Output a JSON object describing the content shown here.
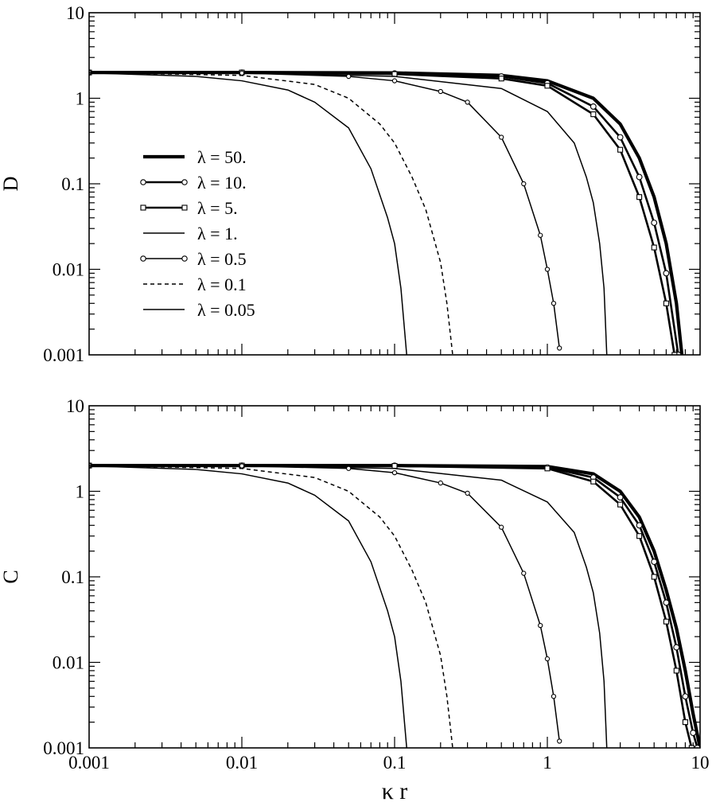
{
  "chart_data": [
    {
      "type": "line",
      "panel": "top",
      "ylabel": "D",
      "xlabel": "",
      "xscale": "log",
      "yscale": "log",
      "xlim": [
        0.001,
        10
      ],
      "ylim": [
        0.001,
        10
      ],
      "xticks": [
        "",
        "",
        "",
        "",
        ""
      ],
      "yticks": [
        "10",
        "1",
        "0.1",
        "0.01",
        "0.001"
      ],
      "legend": "center-left",
      "series": [
        {
          "name": "λ = 50.",
          "style": "thick",
          "values": [
            [
              0.001,
              2.0
            ],
            [
              0.01,
              2.0
            ],
            [
              0.1,
              1.98
            ],
            [
              0.5,
              1.85
            ],
            [
              1,
              1.6
            ],
            [
              2,
              1.0
            ],
            [
              3,
              0.5
            ],
            [
              4,
              0.2
            ],
            [
              5,
              0.07
            ],
            [
              6,
              0.02
            ],
            [
              7,
              0.004
            ],
            [
              7.6,
              0.001
            ]
          ]
        },
        {
          "name": "λ = 10.",
          "style": "thick-circle",
          "values": [
            [
              0.001,
              2.0
            ],
            [
              0.01,
              2.0
            ],
            [
              0.1,
              1.95
            ],
            [
              0.5,
              1.8
            ],
            [
              1,
              1.5
            ],
            [
              2,
              0.8
            ],
            [
              3,
              0.35
            ],
            [
              4,
              0.12
            ],
            [
              5,
              0.035
            ],
            [
              6,
              0.009
            ],
            [
              7.2,
              0.001
            ]
          ]
        },
        {
          "name": "λ = 5.",
          "style": "thick-square",
          "values": [
            [
              0.001,
              2.0
            ],
            [
              0.01,
              2.0
            ],
            [
              0.1,
              1.92
            ],
            [
              0.5,
              1.7
            ],
            [
              1,
              1.4
            ],
            [
              2,
              0.65
            ],
            [
              3,
              0.25
            ],
            [
              4,
              0.07
            ],
            [
              5,
              0.018
            ],
            [
              6,
              0.004
            ],
            [
              6.8,
              0.001
            ]
          ]
        },
        {
          "name": "λ = 1.",
          "style": "thin",
          "values": [
            [
              0.001,
              2.0
            ],
            [
              0.01,
              1.99
            ],
            [
              0.1,
              1.8
            ],
            [
              0.5,
              1.3
            ],
            [
              1,
              0.7
            ],
            [
              1.5,
              0.3
            ],
            [
              1.8,
              0.12
            ],
            [
              2,
              0.06
            ],
            [
              2.2,
              0.02
            ],
            [
              2.35,
              0.006
            ],
            [
              2.45,
              0.001
            ]
          ]
        },
        {
          "name": "λ = 0.5",
          "style": "thin-circle",
          "values": [
            [
              0.001,
              2.0
            ],
            [
              0.01,
              1.97
            ],
            [
              0.05,
              1.8
            ],
            [
              0.1,
              1.6
            ],
            [
              0.2,
              1.2
            ],
            [
              0.3,
              0.9
            ],
            [
              0.5,
              0.35
            ],
            [
              0.7,
              0.1
            ],
            [
              0.9,
              0.025
            ],
            [
              1.0,
              0.01
            ],
            [
              1.1,
              0.004
            ],
            [
              1.2,
              0.0012
            ]
          ]
        },
        {
          "name": "λ = 0.1",
          "style": "dashed",
          "values": [
            [
              0.001,
              2.0
            ],
            [
              0.01,
              1.85
            ],
            [
              0.03,
              1.45
            ],
            [
              0.05,
              1.0
            ],
            [
              0.08,
              0.5
            ],
            [
              0.1,
              0.3
            ],
            [
              0.13,
              0.12
            ],
            [
              0.16,
              0.05
            ],
            [
              0.2,
              0.012
            ],
            [
              0.22,
              0.004
            ],
            [
              0.24,
              0.001
            ]
          ]
        },
        {
          "name": "λ = 0.05",
          "style": "thin",
          "values": [
            [
              0.001,
              1.98
            ],
            [
              0.005,
              1.8
            ],
            [
              0.01,
              1.6
            ],
            [
              0.02,
              1.25
            ],
            [
              0.03,
              0.9
            ],
            [
              0.05,
              0.45
            ],
            [
              0.07,
              0.15
            ],
            [
              0.09,
              0.04
            ],
            [
              0.1,
              0.02
            ],
            [
              0.11,
              0.006
            ],
            [
              0.12,
              0.001
            ]
          ]
        }
      ]
    },
    {
      "type": "line",
      "panel": "bottom",
      "ylabel": "C",
      "xlabel": "κ r",
      "xscale": "log",
      "yscale": "log",
      "xlim": [
        0.001,
        10
      ],
      "ylim": [
        0.001,
        10
      ],
      "xticks": [
        "0.001",
        "0.01",
        "0.1",
        "1",
        "10"
      ],
      "yticks": [
        "10",
        "1",
        "0.1",
        "0.01",
        "0.001"
      ],
      "series": [
        {
          "name": "λ = 50.",
          "style": "thick",
          "values": [
            [
              0.001,
              2.0
            ],
            [
              0.01,
              2.0
            ],
            [
              0.1,
              2.0
            ],
            [
              1,
              1.95
            ],
            [
              2,
              1.6
            ],
            [
              3,
              1.0
            ],
            [
              4,
              0.5
            ],
            [
              5,
              0.2
            ],
            [
              6,
              0.07
            ],
            [
              7,
              0.025
            ],
            [
              8,
              0.008
            ],
            [
              9,
              0.0025
            ],
            [
              10,
              0.001
            ]
          ]
        },
        {
          "name": "λ = 10.",
          "style": "thick-circle",
          "values": [
            [
              0.001,
              2.0
            ],
            [
              0.01,
              2.0
            ],
            [
              0.1,
              1.99
            ],
            [
              1,
              1.9
            ],
            [
              2,
              1.45
            ],
            [
              3,
              0.85
            ],
            [
              4,
              0.4
            ],
            [
              5,
              0.15
            ],
            [
              6,
              0.05
            ],
            [
              7,
              0.015
            ],
            [
              8,
              0.004
            ],
            [
              9,
              0.0015
            ],
            [
              9.6,
              0.001
            ]
          ]
        },
        {
          "name": "λ = 5.",
          "style": "thick-square",
          "values": [
            [
              0.001,
              2.0
            ],
            [
              0.01,
              2.0
            ],
            [
              0.1,
              1.98
            ],
            [
              1,
              1.85
            ],
            [
              2,
              1.3
            ],
            [
              3,
              0.7
            ],
            [
              4,
              0.3
            ],
            [
              5,
              0.1
            ],
            [
              6,
              0.03
            ],
            [
              7,
              0.008
            ],
            [
              8,
              0.002
            ],
            [
              8.8,
              0.001
            ]
          ]
        },
        {
          "name": "λ = 1.",
          "style": "thin",
          "values": [
            [
              0.001,
              2.0
            ],
            [
              0.01,
              1.99
            ],
            [
              0.1,
              1.85
            ],
            [
              0.5,
              1.35
            ],
            [
              1,
              0.75
            ],
            [
              1.5,
              0.33
            ],
            [
              1.8,
              0.13
            ],
            [
              2,
              0.065
            ],
            [
              2.2,
              0.022
            ],
            [
              2.35,
              0.006
            ],
            [
              2.45,
              0.001
            ]
          ]
        },
        {
          "name": "λ = 0.5",
          "style": "thin-circle",
          "values": [
            [
              0.001,
              2.0
            ],
            [
              0.01,
              1.98
            ],
            [
              0.05,
              1.85
            ],
            [
              0.1,
              1.65
            ],
            [
              0.2,
              1.25
            ],
            [
              0.3,
              0.95
            ],
            [
              0.5,
              0.38
            ],
            [
              0.7,
              0.11
            ],
            [
              0.9,
              0.027
            ],
            [
              1.0,
              0.011
            ],
            [
              1.1,
              0.004
            ],
            [
              1.2,
              0.0012
            ]
          ]
        },
        {
          "name": "λ = 0.1",
          "style": "dashed",
          "values": [
            [
              0.001,
              2.0
            ],
            [
              0.01,
              1.85
            ],
            [
              0.03,
              1.45
            ],
            [
              0.05,
              1.0
            ],
            [
              0.08,
              0.5
            ],
            [
              0.1,
              0.3
            ],
            [
              0.13,
              0.12
            ],
            [
              0.16,
              0.05
            ],
            [
              0.2,
              0.012
            ],
            [
              0.22,
              0.004
            ],
            [
              0.24,
              0.001
            ]
          ]
        },
        {
          "name": "λ = 0.05",
          "style": "thin",
          "values": [
            [
              0.001,
              1.98
            ],
            [
              0.005,
              1.8
            ],
            [
              0.01,
              1.6
            ],
            [
              0.02,
              1.25
            ],
            [
              0.03,
              0.9
            ],
            [
              0.05,
              0.45
            ],
            [
              0.07,
              0.15
            ],
            [
              0.09,
              0.04
            ],
            [
              0.1,
              0.02
            ],
            [
              0.11,
              0.006
            ],
            [
              0.12,
              0.001
            ]
          ]
        }
      ]
    }
  ]
}
